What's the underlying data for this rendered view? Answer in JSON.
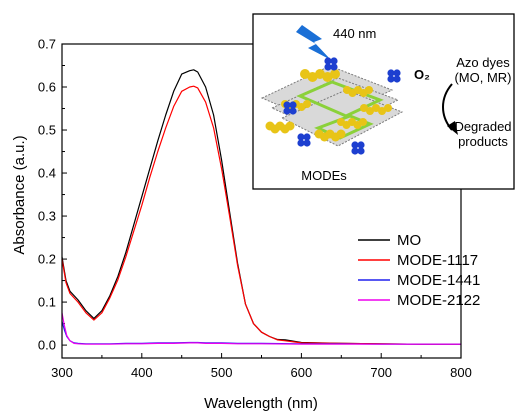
{
  "chart_data": {
    "type": "line",
    "xlabel": "Wavelength (nm)",
    "ylabel": "Absorbance (a.u.)",
    "xlim": [
      300,
      800
    ],
    "ylim": [
      -0.03,
      0.7
    ],
    "x_ticks": [
      "300",
      "400",
      "500",
      "600",
      "700",
      "800"
    ],
    "y_ticks": [
      "0.0",
      "0.1",
      "0.2",
      "0.3",
      "0.4",
      "0.5",
      "0.6",
      "0.7"
    ],
    "legend_position": "right",
    "series": [
      {
        "name": "MO",
        "color": "#000000",
        "x": [
          300,
          305,
          310,
          320,
          330,
          340,
          350,
          360,
          370,
          380,
          390,
          400,
          410,
          420,
          430,
          440,
          450,
          460,
          465,
          470,
          480,
          490,
          500,
          510,
          520,
          530,
          540,
          550,
          560,
          570,
          580,
          600,
          650,
          700,
          750,
          800
        ],
        "y": [
          0.205,
          0.15,
          0.125,
          0.105,
          0.08,
          0.062,
          0.08,
          0.115,
          0.16,
          0.215,
          0.28,
          0.345,
          0.41,
          0.475,
          0.535,
          0.59,
          0.63,
          0.638,
          0.64,
          0.635,
          0.6,
          0.535,
          0.43,
          0.31,
          0.19,
          0.095,
          0.05,
          0.03,
          0.02,
          0.013,
          0.012,
          0.006,
          0.004,
          0.003,
          0.002,
          0.002
        ]
      },
      {
        "name": "MODE-1117",
        "color": "#ff0000",
        "x": [
          300,
          305,
          310,
          320,
          330,
          340,
          350,
          360,
          370,
          380,
          390,
          400,
          410,
          420,
          430,
          440,
          450,
          460,
          465,
          470,
          480,
          490,
          500,
          510,
          520,
          530,
          540,
          550,
          560,
          570,
          580,
          600,
          650,
          700,
          750,
          800
        ],
        "y": [
          0.2,
          0.145,
          0.12,
          0.1,
          0.075,
          0.058,
          0.075,
          0.11,
          0.152,
          0.205,
          0.265,
          0.325,
          0.39,
          0.45,
          0.505,
          0.555,
          0.59,
          0.6,
          0.602,
          0.598,
          0.565,
          0.505,
          0.41,
          0.3,
          0.185,
          0.095,
          0.05,
          0.03,
          0.02,
          0.012,
          0.01,
          0.005,
          0.004,
          0.003,
          0.002,
          0.002
        ]
      },
      {
        "name": "MODE-1441",
        "color": "#2020ee",
        "x": [
          300,
          303,
          306,
          310,
          315,
          320,
          330,
          340,
          360,
          380,
          400,
          420,
          440,
          460,
          470,
          480,
          500,
          520,
          550,
          600,
          650,
          700,
          750,
          800
        ],
        "y": [
          0.055,
          0.035,
          0.02,
          0.01,
          0.005,
          0.004,
          0.003,
          0.003,
          0.003,
          0.004,
          0.004,
          0.005,
          0.005,
          0.006,
          0.006,
          0.005,
          0.005,
          0.004,
          0.004,
          0.003,
          0.003,
          0.002,
          0.002,
          0.002
        ]
      },
      {
        "name": "MODE-2122",
        "color": "#ee00ee",
        "x": [
          300,
          303,
          306,
          310,
          315,
          320,
          330,
          340,
          360,
          380,
          400,
          420,
          440,
          460,
          470,
          480,
          500,
          520,
          550,
          600,
          650,
          700,
          750,
          800
        ],
        "y": [
          0.075,
          0.045,
          0.022,
          0.01,
          0.004,
          0.003,
          0.002,
          0.002,
          0.002,
          0.003,
          0.003,
          0.004,
          0.004,
          0.005,
          0.005,
          0.004,
          0.004,
          0.003,
          0.003,
          0.002,
          0.002,
          0.002,
          0.002,
          0.002
        ]
      }
    ],
    "inset": {
      "wavelength_label": "440 nm",
      "material_label": "MODEs",
      "oxidant_label": "O₂",
      "dyes_label_line1": "Azo dyes",
      "dyes_label_line2": "(MO, MR)",
      "products_label_line1": "Degraded",
      "products_label_line2": "products",
      "lightning_color": "#1a6fd6",
      "sheet_color": "#7a7a7a",
      "sulfur_color": "#e8c417",
      "nitrogen_color": "#1d3fd0",
      "green_accent": "#8bd13a"
    }
  }
}
